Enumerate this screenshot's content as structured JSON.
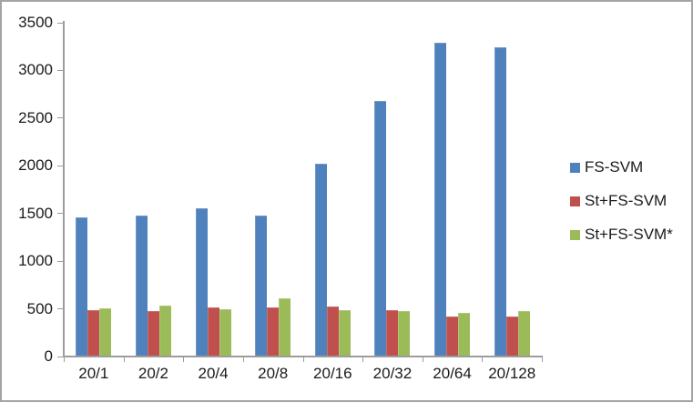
{
  "chart_data": {
    "type": "bar",
    "title": "",
    "xlabel": "",
    "ylabel": "",
    "categories": [
      "20/1",
      "20/2",
      "20/4",
      "20/8",
      "20/16",
      "20/32",
      "20/64",
      "20/128"
    ],
    "series": [
      {
        "name": "FS-SVM",
        "color": "#4F81BD",
        "border_color": "#7299c6",
        "values": [
          1460,
          1480,
          1550,
          1480,
          2020,
          2680,
          3290,
          3240
        ]
      },
      {
        "name": "St+FS-SVM",
        "color": "#C0504D",
        "border_color": "#cb6f6c",
        "values": [
          490,
          475,
          515,
          515,
          520,
          490,
          415,
          415
        ]
      },
      {
        "name": "St+FS-SVM*",
        "color": "#9BBB59",
        "border_color": "#aec878",
        "values": [
          510,
          535,
          500,
          615,
          490,
          480,
          460,
          475
        ]
      }
    ],
    "ylim": [
      0,
      3500
    ],
    "yticks": [
      0,
      500,
      1000,
      1500,
      2000,
      2500,
      3000,
      3500
    ],
    "grid": false,
    "legend_position": "right"
  },
  "frame": {
    "border_color": "#a4a4a4",
    "background_color": "#ffffff",
    "axis_color": "#9c9c9c",
    "text_color": "#1a1a1a"
  }
}
